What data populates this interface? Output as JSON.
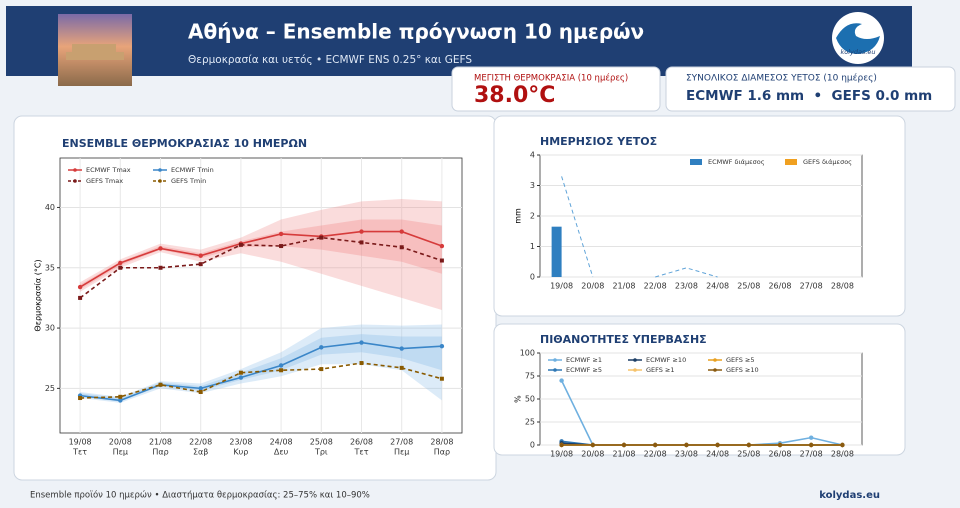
{
  "header": {
    "title": "Αθήνα – Ensemble πρόγνωση 10 ημερών",
    "subtitle": "Θερμοκρασία και υετός • ECMWF ENS 0.25° και GEFS",
    "logo": "kolydas.eu"
  },
  "cards": [
    {
      "label": "ΜΕΓΙΣΤΗ ΘΕΡΜΟΚΡΑΣΙΑ (10 ημέρες)",
      "value": "38.0°C"
    },
    {
      "label": "ΣΥΝΟΛΙΚΟΣ ΔΙΑΜΕΣΟΣ ΥΕΤΟΣ (10 ημέρες)",
      "value": "ECMWF 1.6 mm  •  GEFS 0.0 mm"
    }
  ],
  "footer": {
    "note": "Ensemble προϊόν 10 ημερών • Διαστήματα θερμοκρασίας: 25–75% και 10–90%",
    "site": "kolydas.eu"
  },
  "chart_data": [
    {
      "type": "line",
      "title": "ENSEMBLE ΘΕΡΜΟΚΡΑΣΙΑΣ 10 ΗΜΕΡΩΝ",
      "y_label": "Θερμοκρασία (°C)",
      "categories": [
        "19/08",
        "20/08",
        "21/08",
        "22/08",
        "23/08",
        "24/08",
        "25/08",
        "26/08",
        "27/08",
        "28/08"
      ],
      "category_sublabels": [
        "Τετ",
        "Πεμ",
        "Παρ",
        "Σαβ",
        "Κυρ",
        "Δευ",
        "Τρι",
        "Τετ",
        "Πεμ",
        "Παρ"
      ],
      "ylim": [
        21.3,
        44.1
      ],
      "yticks": [
        25,
        30,
        35,
        40
      ],
      "grid": true,
      "legend_rows": 2,
      "series": [
        {
          "name": "ECMWF Tmax",
          "color": "#d63b3b",
          "marker": "circle",
          "dashed": false,
          "values": [
            33.4,
            35.4,
            36.6,
            36.0,
            37.0,
            37.8,
            37.6,
            38.0,
            38.0,
            36.8
          ],
          "band_color": "#f08a8a",
          "p10": [
            33.0,
            35.0,
            36.3,
            35.5,
            36.2,
            35.5,
            34.5,
            33.5,
            32.5,
            31.5
          ],
          "p25": [
            33.2,
            35.2,
            36.5,
            35.8,
            36.7,
            36.8,
            36.5,
            36.0,
            35.5,
            34.5
          ],
          "p75": [
            33.6,
            35.5,
            36.8,
            36.2,
            37.2,
            38.0,
            38.5,
            39.0,
            39.0,
            38.5
          ],
          "p90": [
            33.8,
            35.7,
            37.0,
            36.5,
            37.5,
            39.0,
            39.8,
            40.5,
            40.7,
            40.5
          ]
        },
        {
          "name": "GEFS Tmax",
          "color": "#7a1a1a",
          "marker": "square",
          "dashed": true,
          "values": [
            32.5,
            35.0,
            35.0,
            35.3,
            36.9,
            36.8,
            37.5,
            37.1,
            36.7,
            35.6
          ]
        },
        {
          "name": "ECMWF Tmin",
          "color": "#3a86c8",
          "marker": "circle",
          "dashed": false,
          "values": [
            24.4,
            24.0,
            25.3,
            25.0,
            25.9,
            26.9,
            28.4,
            28.8,
            28.3,
            28.5
          ],
          "band_color": "#8cbce8",
          "p10": [
            24.2,
            23.8,
            25.0,
            24.6,
            25.4,
            26.0,
            27.0,
            27.0,
            26.5,
            24.0
          ],
          "p25": [
            24.3,
            23.9,
            25.2,
            24.8,
            25.7,
            26.5,
            27.8,
            28.0,
            27.5,
            26.5
          ],
          "p75": [
            24.6,
            24.2,
            25.5,
            25.2,
            26.3,
            27.5,
            29.2,
            29.5,
            29.3,
            29.3
          ],
          "p90": [
            24.7,
            24.3,
            25.6,
            25.4,
            26.6,
            28.0,
            30.0,
            30.3,
            30.2,
            30.3
          ]
        },
        {
          "name": "GEFS Tmin",
          "color": "#8a5a00",
          "marker": "square",
          "dashed": true,
          "values": [
            24.2,
            24.3,
            25.3,
            24.7,
            26.3,
            26.5,
            26.6,
            27.1,
            26.7,
            25.8
          ]
        }
      ]
    },
    {
      "type": "bar",
      "title": "ΗΜΕΡΗΣΙΟΣ ΥΕΤΟΣ",
      "y_label": "mm",
      "categories": [
        "19/08",
        "20/08",
        "21/08",
        "22/08",
        "23/08",
        "24/08",
        "25/08",
        "26/08",
        "27/08",
        "28/08"
      ],
      "ylim": [
        0,
        4
      ],
      "yticks": [
        0,
        1,
        2,
        3,
        4
      ],
      "grid": true,
      "legend_rows": 1,
      "series": [
        {
          "name": "ECMWF διάμεσος",
          "color": "#2f7fc0",
          "values": [
            1.65,
            0,
            0,
            0,
            0,
            0,
            0,
            0,
            0,
            0
          ]
        },
        {
          "name": "GEFS διάμεσος",
          "color": "#f0a020",
          "values": [
            0,
            0,
            0,
            0,
            0,
            0,
            0,
            0,
            0,
            0
          ]
        },
        {
          "type": "line",
          "color": "#5fa3d8",
          "dashed": true,
          "values": [
            3.3,
            0,
            null,
            0,
            0.3,
            0,
            null,
            null,
            null,
            null
          ]
        }
      ]
    },
    {
      "type": "line",
      "title": "ΠΙΘΑΝΟΤΗΤΕΣ ΥΠΕΡΒΑΣΗΣ",
      "y_label": "%",
      "categories": [
        "19/08",
        "20/08",
        "21/08",
        "22/08",
        "23/08",
        "24/08",
        "25/08",
        "26/08",
        "27/08",
        "28/08"
      ],
      "ylim": [
        0,
        100
      ],
      "yticks": [
        0,
        25,
        50,
        75,
        100
      ],
      "grid": true,
      "legend_rows": 2,
      "series": [
        {
          "name": "ECMWF ≥1",
          "color": "#6fb0e0",
          "marker": "circle",
          "values": [
            70,
            0,
            0,
            0,
            0,
            0,
            0,
            2,
            8,
            0
          ]
        },
        {
          "name": "ECMWF ≥5",
          "color": "#2f78b5",
          "marker": "circle",
          "values": [
            4,
            0,
            0,
            0,
            0,
            0,
            0,
            0,
            0,
            0
          ]
        },
        {
          "name": "ECMWF ≥10",
          "color": "#1c3e66",
          "marker": "circle",
          "values": [
            2,
            0,
            0,
            0,
            0,
            0,
            0,
            0,
            0,
            0
          ]
        },
        {
          "name": "GEFS ≥1",
          "color": "#f5c26b",
          "marker": "circle",
          "values": [
            0,
            0,
            0,
            0,
            0,
            0,
            0,
            0,
            0,
            0
          ]
        },
        {
          "name": "GEFS ≥5",
          "color": "#e8a020",
          "marker": "circle",
          "values": [
            0,
            0,
            0,
            0,
            0,
            0,
            0,
            0,
            0,
            0
          ]
        },
        {
          "name": "GEFS ≥10",
          "color": "#8a5a10",
          "marker": "circle",
          "values": [
            0,
            0,
            0,
            0,
            0,
            0,
            0,
            0,
            0,
            0
          ]
        }
      ]
    }
  ]
}
